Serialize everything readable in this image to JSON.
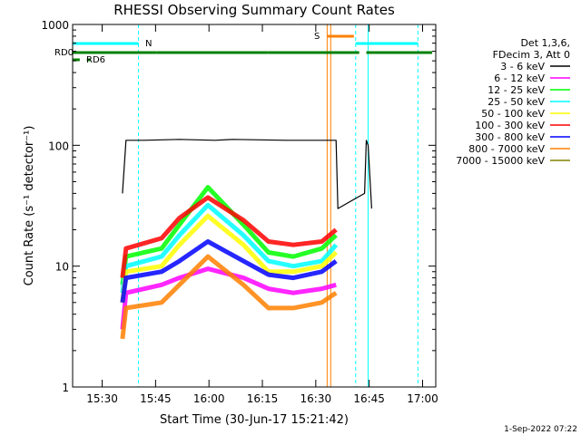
{
  "chart_data": {
    "type": "line",
    "title": "RHESSI Observing Summary Count Rates",
    "xlabel": "Start Time (30-Jun-17 15:21:42)",
    "ylabel": "Count Rate (s⁻¹ detector⁻¹)",
    "yscale": "log",
    "ylim": [
      1,
      1000
    ],
    "xlim_minutes_after_1521": [
      0,
      102
    ],
    "x_ticks": [
      "15:30",
      "15:45",
      "16:00",
      "16:15",
      "16:30",
      "16:45",
      "17:00"
    ],
    "y_ticks": [
      "1",
      "10",
      "100",
      "1000"
    ],
    "legend_placement": "right",
    "legend_header": [
      "Det 1,3,6,",
      "FDecim 3, Att 0"
    ],
    "series": [
      {
        "name": "3 - 6 keV",
        "color": "#000000",
        "x_minutes": [
          14,
          15,
          20,
          30,
          40,
          45,
          60,
          74,
          74.5,
          82,
          82.5,
          83,
          84
        ],
        "values": [
          40,
          110,
          110,
          112,
          110,
          112,
          110,
          110,
          30,
          40,
          110,
          100,
          30
        ]
      },
      {
        "name": "6 - 12 keV",
        "color": "#ff00ff",
        "x_minutes": [
          14,
          15,
          25,
          30,
          38,
          48,
          55,
          62,
          70,
          74
        ],
        "values": [
          3,
          6,
          7,
          8,
          9.5,
          8,
          6.5,
          6,
          6.5,
          7
        ]
      },
      {
        "name": "12 - 25 keV",
        "color": "#00ff00",
        "x_minutes": [
          14,
          15,
          25,
          30,
          38,
          48,
          55,
          62,
          70,
          74
        ],
        "values": [
          7,
          12,
          14,
          22,
          45,
          22,
          13,
          12,
          14,
          18
        ]
      },
      {
        "name": "25 - 50 keV",
        "color": "#00ffff",
        "x_minutes": [
          14,
          15,
          25,
          30,
          38,
          48,
          55,
          62,
          70,
          74
        ],
        "values": [
          6,
          10,
          12,
          18,
          32,
          18,
          11,
          10,
          11,
          15
        ]
      },
      {
        "name": "50 - 100 keV",
        "color": "#ffff00",
        "x_minutes": [
          14,
          15,
          25,
          30,
          38,
          48,
          55,
          62,
          70,
          74
        ],
        "values": [
          5,
          9,
          10,
          15,
          26,
          15,
          9,
          9,
          10,
          13
        ]
      },
      {
        "name": "100 - 300 keV",
        "color": "#ff0000",
        "x_minutes": [
          14,
          15,
          25,
          30,
          38,
          48,
          55,
          62,
          70,
          74
        ],
        "values": [
          8,
          14,
          17,
          25,
          37,
          24,
          16,
          15,
          16,
          20
        ]
      },
      {
        "name": "300 - 800 keV",
        "color": "#0000ff",
        "x_minutes": [
          14,
          15,
          25,
          30,
          38,
          48,
          55,
          62,
          70,
          74
        ],
        "values": [
          5,
          8,
          9,
          11,
          16,
          11,
          8.5,
          8,
          9,
          11
        ]
      },
      {
        "name": "800 - 7000 keV",
        "color": "#ff8000",
        "x_minutes": [
          14,
          15,
          25,
          30,
          38,
          48,
          55,
          62,
          70,
          74
        ],
        "values": [
          2.5,
          4.5,
          5,
          7,
          12,
          7,
          4.5,
          4.5,
          5,
          6
        ]
      },
      {
        "name": "7000 - 15000 keV",
        "color": "#808000",
        "x_minutes": [],
        "values": []
      }
    ],
    "status_bars": [
      {
        "label": "RD0",
        "color": "#008000",
        "segments_minutes": [
          [
            0,
            23.5
          ],
          [
            23.5,
            55
          ],
          [
            55,
            80.5
          ],
          [
            82.5,
            101
          ]
        ]
      },
      {
        "label": "RD6",
        "color": "#008000",
        "segments_minutes": [
          [
            0,
            2
          ],
          [
            4,
            5
          ]
        ]
      },
      {
        "label": "N",
        "color": "#00ffff",
        "segments_minutes": [
          [
            0,
            18.5
          ],
          [
            79.5,
            97
          ]
        ]
      },
      {
        "label": "S",
        "color": "#ff8000",
        "segments_minutes": [
          [
            71.5,
            79
          ]
        ]
      }
    ],
    "vertical_markers_minutes": [
      {
        "type": "solid",
        "color": "#00ffff",
        "at": 0
      },
      {
        "type": "dashed",
        "color": "#00ffff",
        "at": 18.5
      },
      {
        "type": "solid",
        "color": "#ff8000",
        "at": 71.5
      },
      {
        "type": "solid",
        "color": "#ff8000",
        "at": 72.5
      },
      {
        "type": "dashed",
        "color": "#00ffff",
        "at": 79.5
      },
      {
        "type": "solid",
        "color": "#00ffff",
        "at": 83
      },
      {
        "type": "dashed",
        "color": "#00ffff",
        "at": 97
      }
    ],
    "footer": "1-Sep-2022 07:22"
  }
}
